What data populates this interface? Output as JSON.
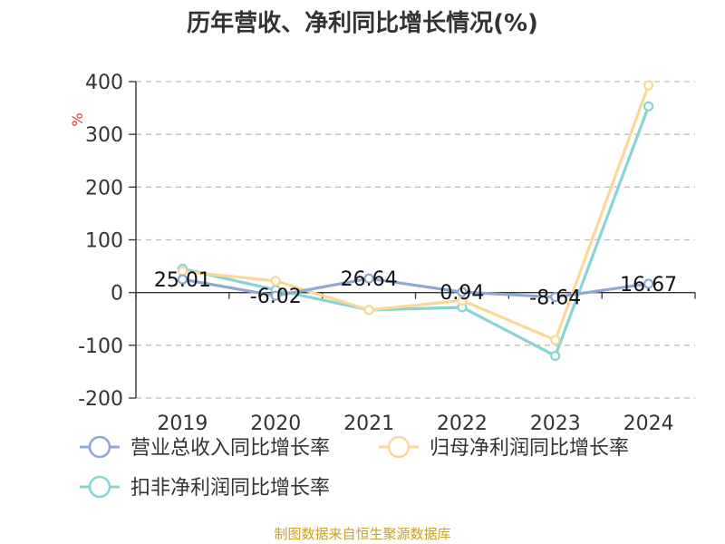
{
  "chart_data": {
    "type": "line",
    "title": "历年营收、净利同比增长情况(%)",
    "y_unit": "%",
    "categories": [
      "2019",
      "2020",
      "2021",
      "2022",
      "2023",
      "2024"
    ],
    "ylim": [
      -200,
      400
    ],
    "yticks": [
      400,
      300,
      200,
      100,
      0,
      -100,
      -200
    ],
    "grid": true,
    "legend_position": "bottom",
    "series": [
      {
        "name": "营业总收入同比增长率",
        "color": "#8fa8d6",
        "values": [
          25.01,
          -6.02,
          26.64,
          0.94,
          -8.64,
          16.67
        ],
        "labels": [
          "25.01",
          "-6.02",
          "26.64",
          "0.94",
          "-8.64",
          "16.67"
        ]
      },
      {
        "name": "归母净利润同比增长率",
        "color": "#f9d99a",
        "values": [
          40,
          22,
          -33,
          -15,
          -90,
          393
        ]
      },
      {
        "name": "扣非净利润同比增长率",
        "color": "#88d4d4",
        "values": [
          45,
          5,
          -33,
          -28,
          -120,
          353
        ]
      }
    ]
  },
  "source_text": "制图数据来自恒生聚源数据库"
}
